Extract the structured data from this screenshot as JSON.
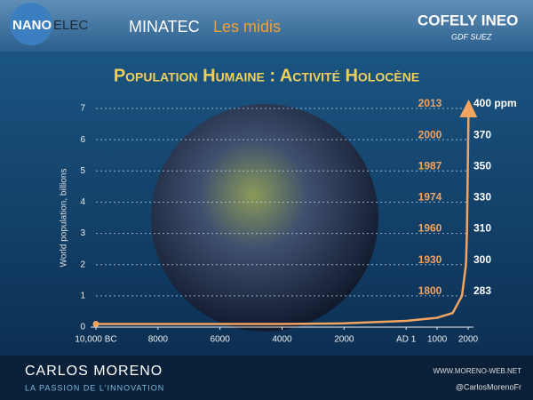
{
  "header": {
    "logo1_a": "NANO",
    "logo1_b": "ELEC",
    "logo2": "MINATEC",
    "logo2_sub": "Les midis",
    "logo3": "COFELY INEO",
    "logo3_sub": "GDF SUEZ"
  },
  "chart_data": {
    "type": "line",
    "title": "Population Humaine : Activité Holocène",
    "y_label": "World population, billions",
    "x": [
      -10000,
      -8000,
      -6000,
      -4000,
      -2000,
      0,
      1000,
      1500,
      1800,
      1930,
      1960,
      1974,
      1987,
      2000,
      2013
    ],
    "series": [
      {
        "name": "World population",
        "color": "#f4a460",
        "values": [
          0.1,
          0.1,
          0.1,
          0.1,
          0.12,
          0.2,
          0.3,
          0.45,
          1,
          2,
          3,
          4,
          5,
          6,
          7
        ]
      }
    ],
    "xlim": [
      -10000,
      2000
    ],
    "xticks": [
      {
        "value": -10000,
        "label": "10,000 BC"
      },
      {
        "value": -8000,
        "label": "8000"
      },
      {
        "value": -6000,
        "label": "6000"
      },
      {
        "value": -4000,
        "label": "4000"
      },
      {
        "value": -2000,
        "label": "2000"
      },
      {
        "value": 0,
        "label": "AD 1"
      },
      1000,
      2000
    ],
    "ylim": [
      0,
      7
    ],
    "yticks": [
      0,
      1,
      2,
      3,
      4,
      5,
      6,
      7
    ],
    "grid": true,
    "annotations": {
      "years": [
        "2013",
        "2000",
        "1987",
        "1974",
        "1960",
        "1930",
        "1800"
      ],
      "co2": [
        "400 ppm",
        "370",
        "350",
        "330",
        "310",
        "300",
        "283"
      ]
    }
  },
  "footer": {
    "name": "CARLOS MORENO",
    "tagline": "LA PASSION DE L'INNOVATION",
    "website": "WWW.MORENO-WEB.NET",
    "twitter": "@CarlosMorenoFr"
  }
}
